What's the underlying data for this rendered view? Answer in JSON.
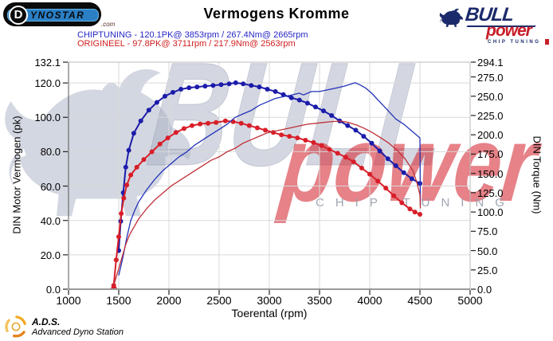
{
  "header": {
    "title": "Vermogens Kromme",
    "dynostar": {
      "circle_letter": "D",
      "rest": "YNOSTAR",
      "suffix": ".com"
    },
    "bullpower": {
      "line1": "BULL",
      "line2": "power",
      "line3": "CHIP TUNING"
    },
    "legend": [
      {
        "label": "CHIPTUNING - 120.1PK@ 3853rpm / 267.4Nm@ 2665rpm",
        "color": "#2626c6"
      },
      {
        "label": "ORIGINEEL - 97.8PK@ 3711rpm / 217.9Nm@ 2563rpm",
        "color": "#d02020"
      }
    ]
  },
  "watermark": {
    "big_text": "BULL",
    "red_text": "power",
    "sub_text": "CHIP TUNING"
  },
  "footer": {
    "ads_abbr": "A.D.S.",
    "ads_full": "Advanced Dyno Station"
  },
  "chart_data": {
    "type": "line",
    "title": "Vermogens Kromme",
    "xlabel": "Toerental (rpm)",
    "ylabel_left": "DIN Motor Vermogen (pk)",
    "ylabel_right": "DIN Torque (Nm)",
    "x_range": [
      1000,
      5000
    ],
    "y_left_range": [
      0,
      132.1
    ],
    "y_right_range": [
      0,
      294.1
    ],
    "grid": true,
    "legend_position": "top-left",
    "x_ticks": [
      {
        "v": 1000,
        "label": "1000"
      },
      {
        "v": 1500,
        "label": "1500"
      },
      {
        "v": 2000,
        "label": "2000"
      },
      {
        "v": 2500,
        "label": "2500"
      },
      {
        "v": 3000,
        "label": "3000"
      },
      {
        "v": 3500,
        "label": "3500"
      },
      {
        "v": 4000,
        "label": "4000"
      },
      {
        "v": 4500,
        "label": "4500"
      },
      {
        "v": 5000,
        "label": "5000"
      }
    ],
    "y_left_ticks": [
      {
        "v": 132.1,
        "label": "132.1"
      },
      {
        "v": 120,
        "label": "120.0"
      },
      {
        "v": 100,
        "label": "100.0"
      },
      {
        "v": 80,
        "label": "80.0"
      },
      {
        "v": 60,
        "label": "60.0"
      },
      {
        "v": 40,
        "label": "40.0"
      },
      {
        "v": 20,
        "label": "20.0"
      },
      {
        "v": 0,
        "label": "0.0"
      }
    ],
    "y_right_ticks": [
      {
        "v": 294.1,
        "label": "294.1"
      },
      {
        "v": 275,
        "label": "275.0"
      },
      {
        "v": 250,
        "label": "250.0"
      },
      {
        "v": 225,
        "label": "225.0"
      },
      {
        "v": 200,
        "label": "200.0"
      },
      {
        "v": 175,
        "label": "175.0"
      },
      {
        "v": 150,
        "label": "150.0"
      },
      {
        "v": 125,
        "label": "125.0"
      },
      {
        "v": 100,
        "label": "100.0"
      },
      {
        "v": 75,
        "label": "75.0"
      },
      {
        "v": 50,
        "label": "50.0"
      },
      {
        "v": 25,
        "label": "25.0"
      },
      {
        "v": 0,
        "label": "0.0"
      }
    ],
    "start_marker": {
      "rpm": 1452,
      "color": "#d81e28"
    },
    "series": [
      {
        "name": "CHIPTUNING torque",
        "unit": "Nm",
        "axis": "right",
        "color": "#1c1caa",
        "width": 2,
        "markers": true,
        "peak": {
          "value": 267.4,
          "rpm": 2665
        },
        "points": [
          [
            1500,
            50
          ],
          [
            1520,
            88
          ],
          [
            1545,
            125
          ],
          [
            1570,
            158
          ],
          [
            1600,
            180
          ],
          [
            1650,
            202
          ],
          [
            1720,
            218
          ],
          [
            1800,
            232
          ],
          [
            1880,
            242
          ],
          [
            1960,
            250
          ],
          [
            2040,
            255
          ],
          [
            2120,
            259
          ],
          [
            2200,
            261
          ],
          [
            2280,
            262
          ],
          [
            2360,
            263
          ],
          [
            2440,
            264
          ],
          [
            2520,
            265
          ],
          [
            2600,
            266
          ],
          [
            2665,
            267.4
          ],
          [
            2740,
            266
          ],
          [
            2820,
            264
          ],
          [
            2900,
            262
          ],
          [
            2980,
            259
          ],
          [
            3060,
            256
          ],
          [
            3140,
            252
          ],
          [
            3220,
            248
          ],
          [
            3300,
            245
          ],
          [
            3380,
            241
          ],
          [
            3460,
            236
          ],
          [
            3540,
            231
          ],
          [
            3620,
            225
          ],
          [
            3700,
            218
          ],
          [
            3780,
            212
          ],
          [
            3860,
            206
          ],
          [
            3940,
            198
          ],
          [
            4020,
            189
          ],
          [
            4100,
            179
          ],
          [
            4180,
            169
          ],
          [
            4260,
            160
          ],
          [
            4340,
            151
          ],
          [
            4420,
            143
          ],
          [
            4500,
            137
          ]
        ]
      },
      {
        "name": "ORIGINEEL torque",
        "unit": "Nm",
        "axis": "right",
        "color": "#d81e28",
        "width": 2,
        "markers": true,
        "peak": {
          "value": 217.9,
          "rpm": 2563
        },
        "points": [
          [
            1450,
            5
          ],
          [
            1475,
            38
          ],
          [
            1500,
            68
          ],
          [
            1525,
            98
          ],
          [
            1550,
            118
          ],
          [
            1580,
            135
          ],
          [
            1620,
            148
          ],
          [
            1680,
            158
          ],
          [
            1750,
            168
          ],
          [
            1830,
            178
          ],
          [
            1910,
            188
          ],
          [
            1990,
            196
          ],
          [
            2070,
            203
          ],
          [
            2150,
            208
          ],
          [
            2230,
            212
          ],
          [
            2310,
            214
          ],
          [
            2390,
            215
          ],
          [
            2470,
            216
          ],
          [
            2563,
            217.9
          ],
          [
            2640,
            217
          ],
          [
            2720,
            215
          ],
          [
            2800,
            212
          ],
          [
            2880,
            209
          ],
          [
            2960,
            206
          ],
          [
            3040,
            203
          ],
          [
            3120,
            200
          ],
          [
            3200,
            198
          ],
          [
            3280,
            196
          ],
          [
            3360,
            193
          ],
          [
            3440,
            190
          ],
          [
            3520,
            186
          ],
          [
            3600,
            181
          ],
          [
            3680,
            176
          ],
          [
            3760,
            171
          ],
          [
            3840,
            165
          ],
          [
            3920,
            157
          ],
          [
            4000,
            149
          ],
          [
            4080,
            140
          ],
          [
            4160,
            131
          ],
          [
            4240,
            121
          ],
          [
            4320,
            112
          ],
          [
            4400,
            104
          ],
          [
            4450,
            100
          ],
          [
            4500,
            97
          ]
        ]
      },
      {
        "name": "CHIPTUNING power",
        "unit": "pk",
        "axis": "left",
        "color": "#2233b8",
        "width": 1.3,
        "markers": false,
        "peak": {
          "value": 120.1,
          "rpm": 3853
        },
        "points": [
          [
            1500,
            8
          ],
          [
            1540,
            18
          ],
          [
            1580,
            30
          ],
          [
            1620,
            40
          ],
          [
            1660,
            46
          ],
          [
            1700,
            51
          ],
          [
            1780,
            58
          ],
          [
            1860,
            64
          ],
          [
            1940,
            69
          ],
          [
            2020,
            73
          ],
          [
            2100,
            77
          ],
          [
            2180,
            80
          ],
          [
            2260,
            84
          ],
          [
            2340,
            87
          ],
          [
            2420,
            90
          ],
          [
            2500,
            93
          ],
          [
            2580,
            96
          ],
          [
            2660,
            100
          ],
          [
            2740,
            102
          ],
          [
            2820,
            104
          ],
          [
            2900,
            107
          ],
          [
            2980,
            109
          ],
          [
            3060,
            111
          ],
          [
            3140,
            112
          ],
          [
            3220,
            113
          ],
          [
            3300,
            114
          ],
          [
            3340,
            113
          ],
          [
            3420,
            115
          ],
          [
            3500,
            115
          ],
          [
            3580,
            116
          ],
          [
            3660,
            117
          ],
          [
            3740,
            118
          ],
          [
            3820,
            119.5
          ],
          [
            3853,
            120.1
          ],
          [
            3900,
            119
          ],
          [
            3960,
            117
          ],
          [
            4020,
            114
          ],
          [
            4100,
            109
          ],
          [
            4180,
            104
          ],
          [
            4260,
            99
          ],
          [
            4340,
            96
          ],
          [
            4420,
            92
          ],
          [
            4500,
            88
          ],
          [
            4505,
            49
          ]
        ]
      },
      {
        "name": "ORIGINEEL power",
        "unit": "pk",
        "axis": "left",
        "color": "#c03038",
        "width": 1.3,
        "markers": false,
        "peak": {
          "value": 97.8,
          "rpm": 3711
        },
        "points": [
          [
            1450,
            2
          ],
          [
            1490,
            10
          ],
          [
            1530,
            18
          ],
          [
            1570,
            26
          ],
          [
            1610,
            32
          ],
          [
            1650,
            36
          ],
          [
            1700,
            41
          ],
          [
            1780,
            47
          ],
          [
            1860,
            52
          ],
          [
            1940,
            56
          ],
          [
            2020,
            60
          ],
          [
            2100,
            63
          ],
          [
            2180,
            66
          ],
          [
            2260,
            69
          ],
          [
            2340,
            72
          ],
          [
            2420,
            75
          ],
          [
            2500,
            77
          ],
          [
            2580,
            80
          ],
          [
            2660,
            82
          ],
          [
            2740,
            85
          ],
          [
            2820,
            87
          ],
          [
            2900,
            89
          ],
          [
            2980,
            91
          ],
          [
            3060,
            92
          ],
          [
            3140,
            93
          ],
          [
            3220,
            94
          ],
          [
            3300,
            95
          ],
          [
            3380,
            96
          ],
          [
            3460,
            96.5
          ],
          [
            3540,
            97
          ],
          [
            3620,
            97.5
          ],
          [
            3711,
            97.8
          ],
          [
            3790,
            97
          ],
          [
            3870,
            95.5
          ],
          [
            3950,
            93.5
          ],
          [
            4030,
            91
          ],
          [
            4110,
            88
          ],
          [
            4190,
            85
          ],
          [
            4270,
            81
          ],
          [
            4350,
            76
          ],
          [
            4430,
            69
          ],
          [
            4470,
            62
          ],
          [
            4500,
            55
          ],
          [
            4505,
            47
          ]
        ]
      }
    ]
  }
}
